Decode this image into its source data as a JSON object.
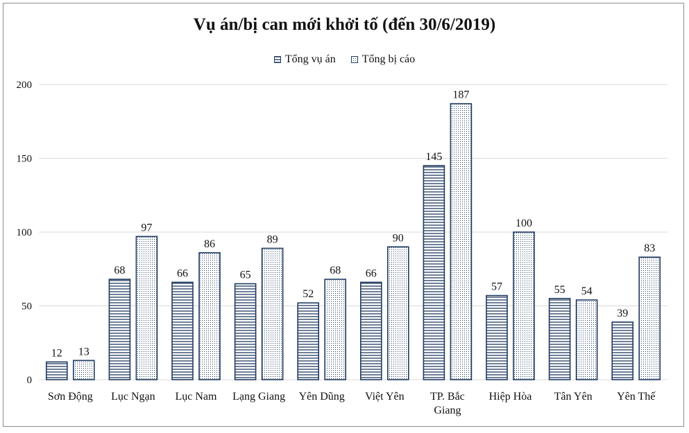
{
  "chart_data": {
    "type": "bar",
    "title": "Vụ án/bị can mới khởi tố (đến 30/6/2019)",
    "xlabel": "",
    "ylabel": "",
    "categories": [
      "Sơn Động",
      "Lục Ngạn",
      "Lục Nam",
      "Lạng Giang",
      "Yên Dũng",
      "Việt Yên",
      "TP. Bắc Giang",
      "Hiệp Hòa",
      "Tân Yên",
      "Yên Thế"
    ],
    "category_lines": [
      [
        "Sơn Động"
      ],
      [
        "Lục Ngạn"
      ],
      [
        "Lục Nam"
      ],
      [
        "Lạng Giang"
      ],
      [
        "Yên Dũng"
      ],
      [
        "Việt Yên"
      ],
      [
        "TP. Bắc",
        "Giang"
      ],
      [
        "Hiệp Hòa"
      ],
      [
        "Tân Yên"
      ],
      [
        "Yên Thế"
      ]
    ],
    "series": [
      {
        "name": "Tổng vụ án",
        "pattern": "horizontal-stripes",
        "values": [
          12,
          68,
          66,
          65,
          52,
          66,
          145,
          57,
          55,
          39
        ]
      },
      {
        "name": "Tổng bị cáo",
        "pattern": "dots",
        "values": [
          13,
          97,
          86,
          89,
          68,
          90,
          187,
          100,
          54,
          83
        ]
      }
    ],
    "ylim": [
      0,
      200
    ],
    "yticks": [
      0,
      50,
      100,
      150,
      200
    ],
    "grid": true,
    "legend_position": "top",
    "data_labels": true,
    "colors": {
      "bar_outline": "#1f3a5f",
      "gridline": "#d9d9d9",
      "text": "#111111"
    }
  }
}
